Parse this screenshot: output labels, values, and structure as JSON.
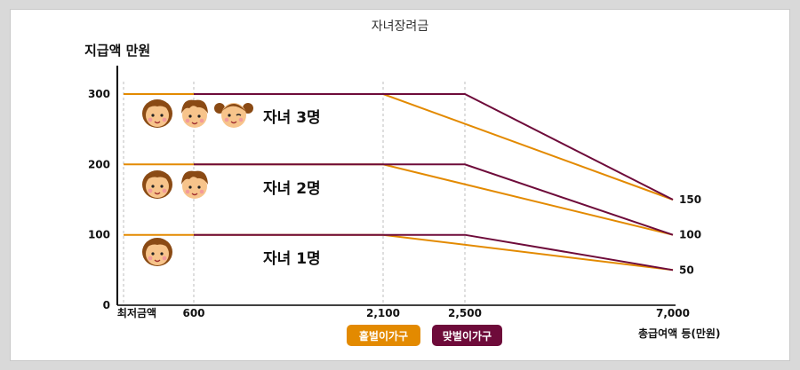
{
  "chart_data": {
    "type": "line",
    "title": "자녀장려금",
    "ylabel": "지급액 만원",
    "xlabel": "총급여액 등(만원)",
    "x_ticks": [
      "최저금액",
      "600",
      "2,100",
      "2,500",
      "7,000"
    ],
    "y_ticks": [
      "0",
      "100",
      "200",
      "300"
    ],
    "right_ticks": [
      "150",
      "100",
      "50"
    ],
    "ylim": [
      0,
      300
    ],
    "series": [
      {
        "name": "홑벌이가구",
        "group": "자녀 1명",
        "color": "#e38a00",
        "points": [
          [
            0,
            100
          ],
          [
            600,
            100
          ],
          [
            2100,
            100
          ],
          [
            7000,
            50
          ]
        ]
      },
      {
        "name": "맞벌이가구",
        "group": "자녀 1명",
        "color": "#6e0b3a",
        "points": [
          [
            600,
            100
          ],
          [
            2500,
            100
          ],
          [
            7000,
            50
          ]
        ]
      },
      {
        "name": "홑벌이가구",
        "group": "자녀 2명",
        "color": "#e38a00",
        "points": [
          [
            0,
            200
          ],
          [
            600,
            200
          ],
          [
            2100,
            200
          ],
          [
            7000,
            100
          ]
        ]
      },
      {
        "name": "맞벌이가구",
        "group": "자녀 2명",
        "color": "#6e0b3a",
        "points": [
          [
            600,
            200
          ],
          [
            2500,
            200
          ],
          [
            7000,
            100
          ]
        ]
      },
      {
        "name": "홑벌이가구",
        "group": "자녀 3명",
        "color": "#e38a00",
        "points": [
          [
            0,
            300
          ],
          [
            600,
            300
          ],
          [
            2100,
            300
          ],
          [
            7000,
            150
          ]
        ]
      },
      {
        "name": "맞벌이가구",
        "group": "자녀 3명",
        "color": "#6e0b3a",
        "points": [
          [
            600,
            300
          ],
          [
            2500,
            300
          ],
          [
            7000,
            150
          ]
        ]
      }
    ],
    "annotations": [
      "자녀 3명",
      "자녀 2명",
      "자녀 1명"
    ],
    "legend": [
      {
        "label": "홑벌이가구",
        "color": "#e38a00"
      },
      {
        "label": "맞벌이가구",
        "color": "#6e0b3a"
      }
    ],
    "legend_position": "bottom-center",
    "icons": [
      "girl-face-icon",
      "boy-face-icon",
      "winking-girl-face-icon"
    ]
  }
}
